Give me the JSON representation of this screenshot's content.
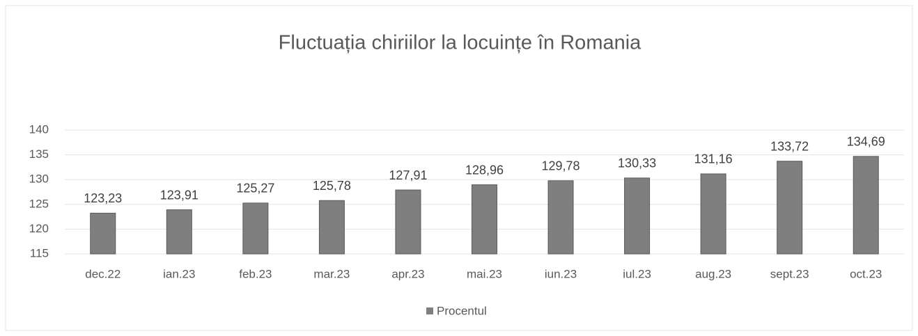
{
  "chart_data": {
    "type": "bar",
    "title": "Fluctuația chiriilor la locuințe în Romania",
    "categories": [
      "dec.22",
      "ian.23",
      "feb.23",
      "mar.23",
      "apr.23",
      "mai.23",
      "iun.23",
      "iul.23",
      "aug.23",
      "sept.23",
      "oct.23"
    ],
    "series": [
      {
        "name": "Procentul",
        "color": "#7f7f7f",
        "values": [
          123.23,
          123.91,
          125.27,
          125.78,
          127.91,
          128.96,
          129.78,
          130.33,
          131.16,
          133.72,
          134.69
        ],
        "value_labels": [
          "123,23",
          "123,91",
          "125,27",
          "125,78",
          "127,91",
          "128,96",
          "129,78",
          "130,33",
          "131,16",
          "133,72",
          "134,69"
        ]
      }
    ],
    "ylim": [
      115,
      140
    ],
    "yticks": [
      115,
      120,
      125,
      130,
      135,
      140
    ],
    "grid": true,
    "legend": "bottom"
  }
}
